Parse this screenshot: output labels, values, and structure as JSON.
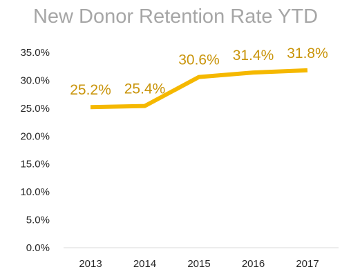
{
  "chart_data": {
    "type": "line",
    "title": "New Donor Retention Rate YTD",
    "categories": [
      "2013",
      "2014",
      "2015",
      "2016",
      "2017"
    ],
    "series": [
      {
        "values": [
          25.2,
          25.4,
          30.6,
          31.4,
          31.8
        ],
        "labels": [
          "25.2%",
          "25.4%",
          "30.6%",
          "31.4%",
          "31.8%"
        ]
      }
    ],
    "y_ticks": [
      "0.0%",
      "5.0%",
      "10.0%",
      "15.0%",
      "20.0%",
      "25.0%",
      "30.0%",
      "35.0%"
    ],
    "ylim": [
      0,
      35
    ],
    "grid": false,
    "legend": "none",
    "xlabel": "",
    "ylabel": "",
    "colors": {
      "line": "#f5b800",
      "data_label": "#c9940a",
      "title": "#a6a6a6",
      "axis_text": "#262626",
      "axis_line": "#d9d9d9"
    }
  }
}
